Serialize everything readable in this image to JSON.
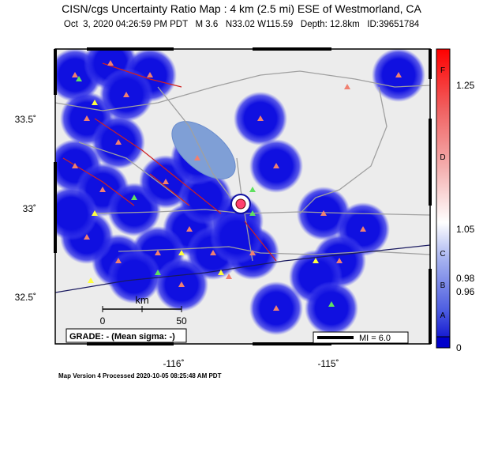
{
  "header": {
    "title": "CISN/cgs Uncertainty Ratio Map : 4 km (2.5 mi) ESE of Westmorland, CA",
    "subtitle": "Oct  3, 2020 04:26:59 PM PDT   M 3.6   N33.02 W115.59   Depth: 12.8km   ID:39651784"
  },
  "map": {
    "lat_labels": [
      "33.5˚",
      "33˚",
      "32.5˚"
    ],
    "lon_labels": [
      "-116˚",
      "-115˚"
    ],
    "scale": {
      "unit": "km",
      "start": "0",
      "end": "50"
    },
    "grade": "GRADE: - (Mean sigma: -)",
    "mi_box": "MI = 6.0"
  },
  "colorbar": {
    "letters": [
      "F",
      "D",
      "C",
      "B",
      "A"
    ],
    "values": [
      "1.25",
      "1.05",
      "0.98",
      "0.96",
      "0"
    ]
  },
  "footer": "Map Version 4 Processed 2020-10-05 08:25:48 AM PDT"
}
